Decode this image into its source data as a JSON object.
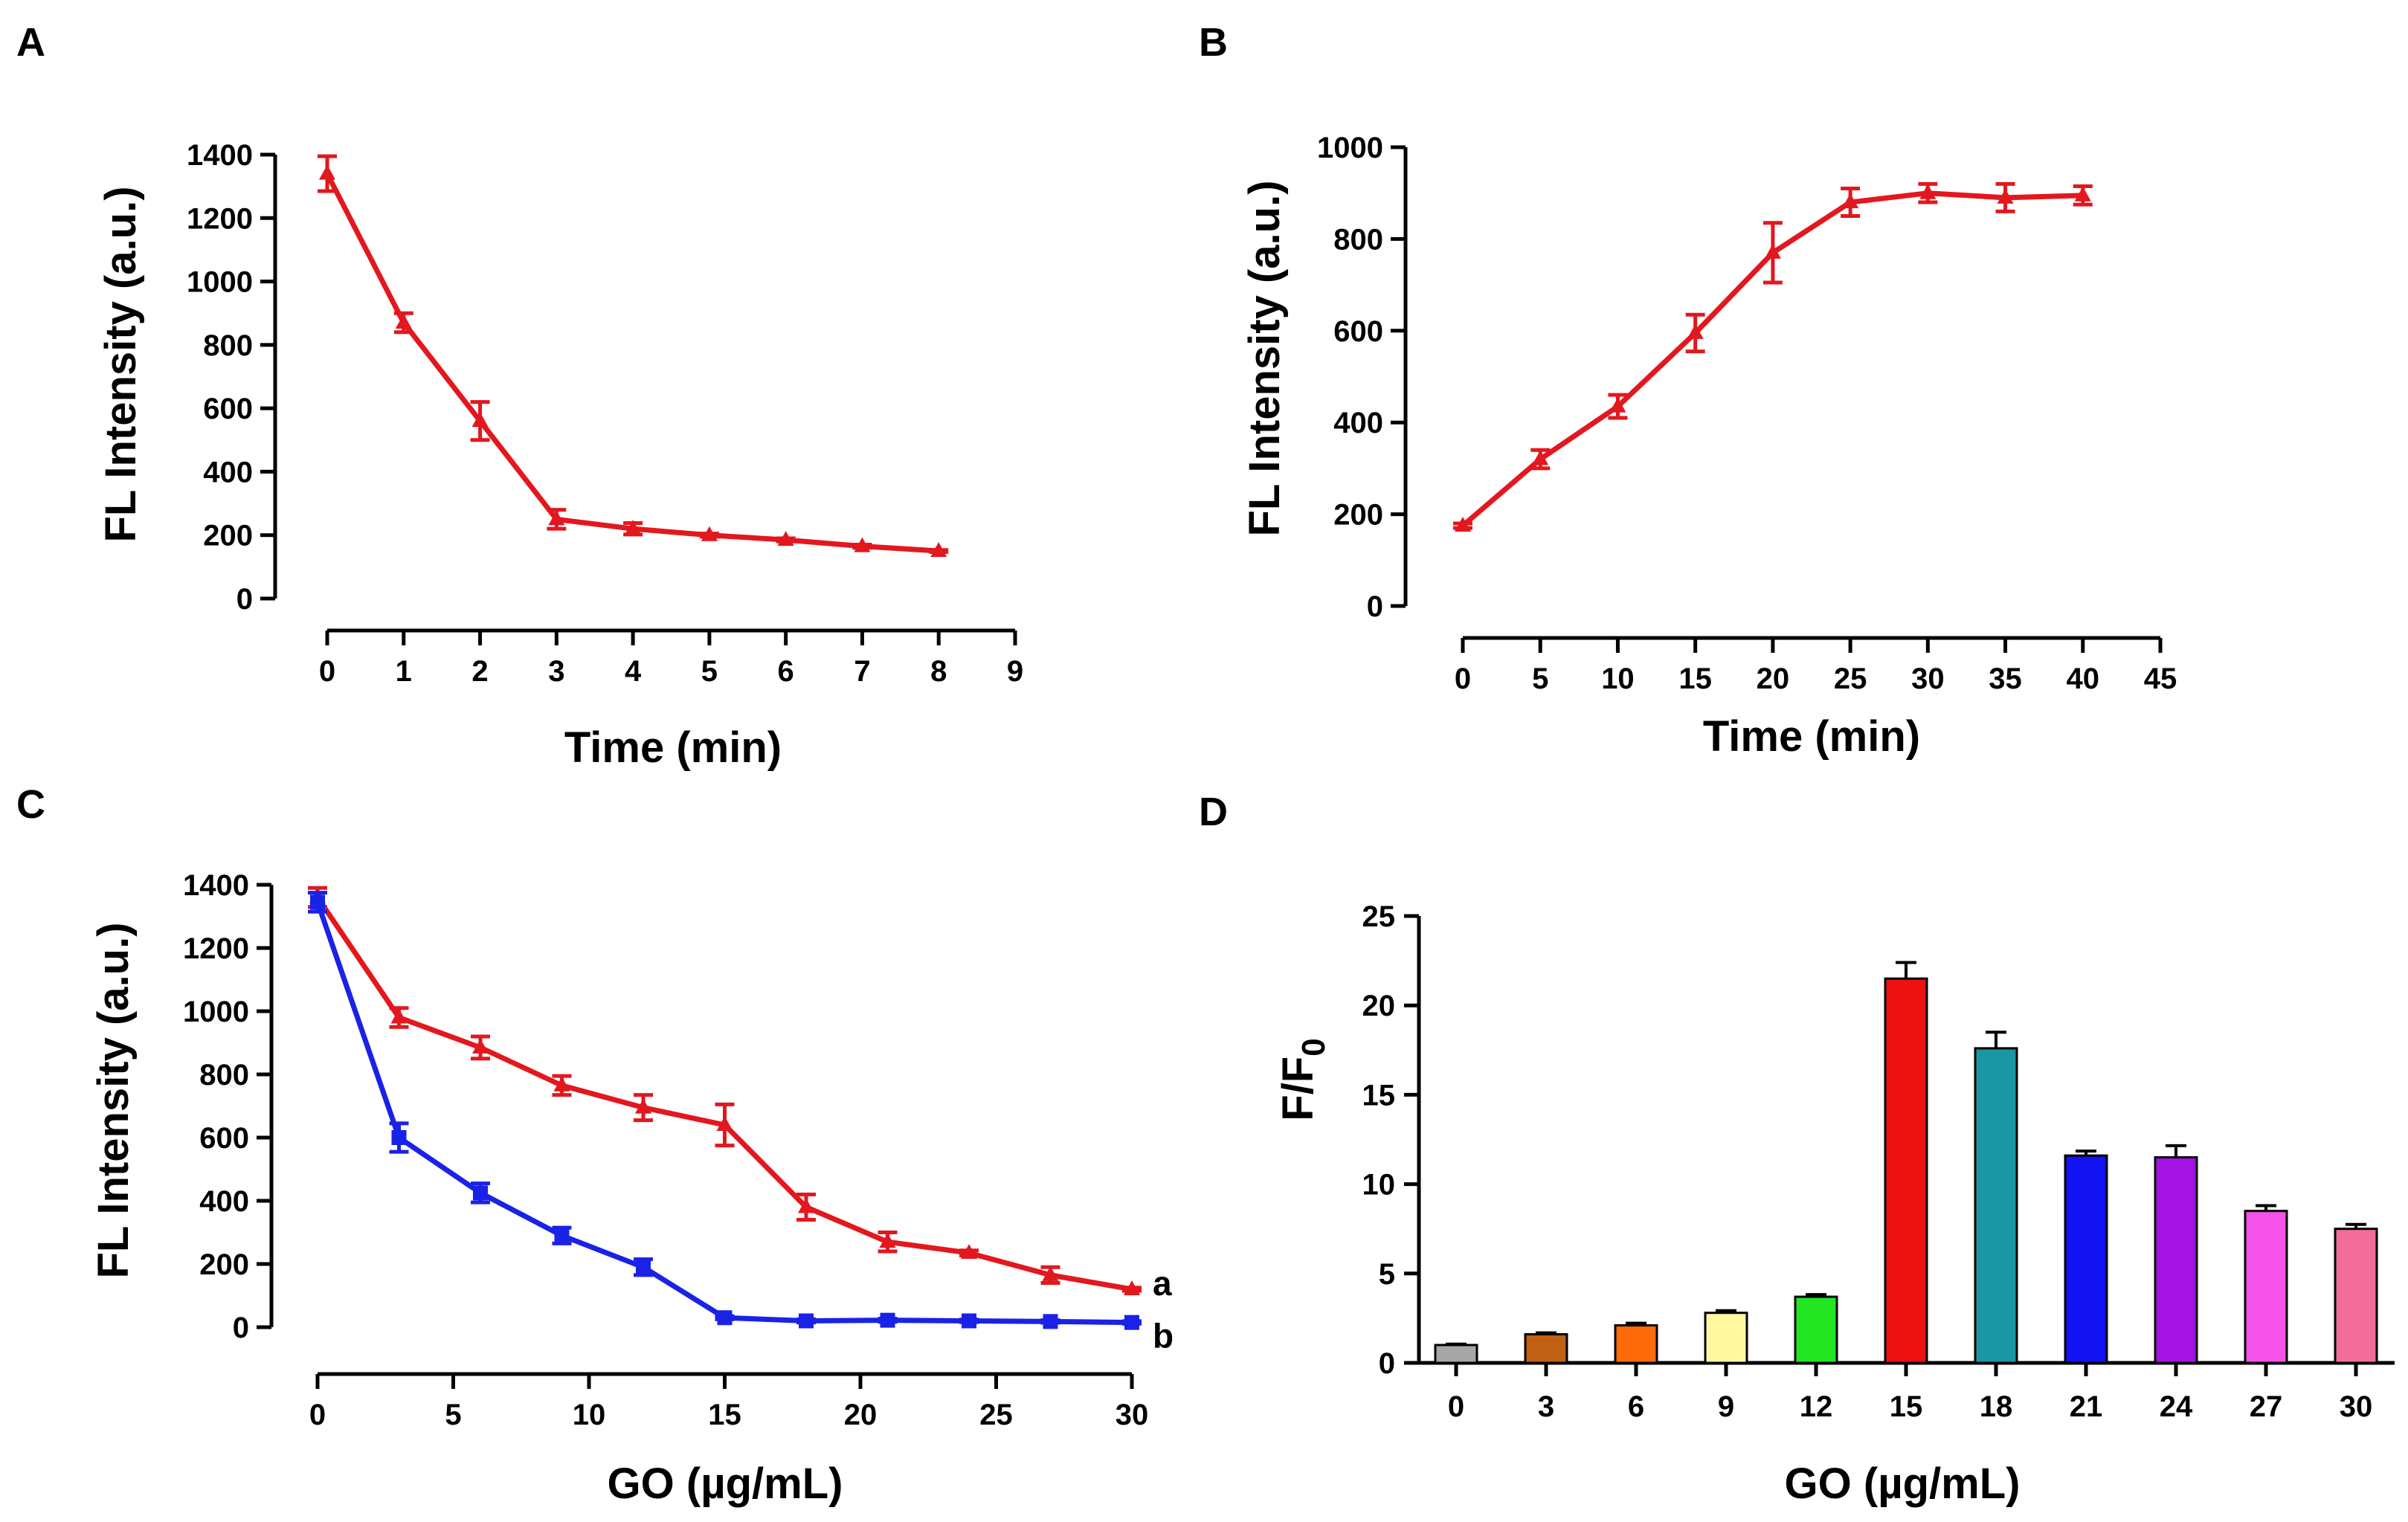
{
  "colors": {
    "red": "#e3171e",
    "blue": "#1a22e6",
    "axis": "#000000"
  },
  "chart_data": [
    {
      "panel": "A",
      "type": "line",
      "xlabel": "Time (min)",
      "ylabel": "FL Intensity (a.u.)",
      "xlim": [
        0,
        9
      ],
      "ylim": [
        0,
        1400
      ],
      "xticks": [
        "0",
        "1",
        "2",
        "3",
        "4",
        "5",
        "6",
        "7",
        "8",
        "9"
      ],
      "yticks": [
        "0",
        "200",
        "400",
        "600",
        "800",
        "1000",
        "1200",
        "1400"
      ],
      "series": [
        {
          "name": "",
          "color": "#e3171e",
          "marker": "triangle",
          "x": [
            0,
            1,
            2,
            3,
            4,
            5,
            6,
            7,
            8
          ],
          "y": [
            1340,
            870,
            560,
            250,
            220,
            200,
            185,
            165,
            150
          ],
          "err": [
            55,
            30,
            60,
            30,
            18,
            5,
            5,
            5,
            3
          ]
        }
      ]
    },
    {
      "panel": "B",
      "type": "line",
      "xlabel": "Time (min)",
      "ylabel": "FL Intensity (a.u.)",
      "xlim": [
        0,
        45
      ],
      "ylim": [
        0,
        1000
      ],
      "xticks": [
        "0",
        "5",
        "10",
        "15",
        "20",
        "25",
        "30",
        "35",
        "40",
        "45"
      ],
      "yticks": [
        "0",
        "200",
        "400",
        "600",
        "800",
        "1000"
      ],
      "series": [
        {
          "name": "",
          "color": "#e3171e",
          "marker": "triangle",
          "x": [
            0,
            5,
            10,
            15,
            20,
            25,
            30,
            35,
            40
          ],
          "y": [
            175,
            320,
            435,
            595,
            770,
            880,
            900,
            890,
            895
          ],
          "err": [
            5,
            20,
            25,
            40,
            65,
            30,
            20,
            30,
            20
          ]
        }
      ]
    },
    {
      "panel": "C",
      "type": "line",
      "xlabel": "GO (µg/mL)",
      "ylabel": "FL Intensity (a.u.)",
      "xlim": [
        0,
        30
      ],
      "ylim": [
        0,
        1400
      ],
      "xticks": [
        "0",
        "5",
        "10",
        "15",
        "20",
        "25",
        "30"
      ],
      "yticks": [
        "0",
        "200",
        "400",
        "600",
        "800",
        "1000",
        "1200",
        "1400"
      ],
      "series": [
        {
          "name": "a",
          "color": "#e3171e",
          "marker": "triangle",
          "x": [
            0,
            3,
            6,
            9,
            12,
            15,
            18,
            21,
            24,
            27,
            30
          ],
          "y": [
            1360,
            980,
            885,
            765,
            695,
            640,
            380,
            270,
            235,
            165,
            120
          ],
          "err": [
            30,
            30,
            35,
            30,
            40,
            65,
            40,
            30,
            8,
            25,
            5
          ]
        },
        {
          "name": "b",
          "color": "#1a22e6",
          "marker": "square",
          "x": [
            0,
            3,
            6,
            9,
            12,
            15,
            18,
            21,
            24,
            27,
            30
          ],
          "y": [
            1345,
            600,
            425,
            290,
            190,
            30,
            20,
            22,
            20,
            18,
            15
          ],
          "err": [
            30,
            45,
            30,
            25,
            25,
            5,
            5,
            5,
            4,
            4,
            4
          ]
        }
      ]
    },
    {
      "panel": "D",
      "type": "bar",
      "xlabel": "GO (µg/mL)",
      "ylabel": "F/F",
      "ylabel_sub": "0",
      "ylim": [
        0,
        25
      ],
      "yticks": [
        "0",
        "5",
        "10",
        "15",
        "20",
        "25"
      ],
      "categories": [
        "0",
        "3",
        "6",
        "9",
        "12",
        "15",
        "18",
        "21",
        "24",
        "27",
        "30"
      ],
      "values": [
        1.0,
        1.6,
        2.1,
        2.8,
        3.7,
        21.5,
        17.6,
        11.6,
        11.5,
        8.5,
        7.5
      ],
      "err": [
        0.05,
        0.08,
        0.12,
        0.12,
        0.12,
        0.9,
        0.9,
        0.25,
        0.65,
        0.3,
        0.25
      ],
      "bar_colors": [
        "#a6a6a6",
        "#c06014",
        "#ff6a0a",
        "#fff8a0",
        "#22e622",
        "#ee1111",
        "#1b97a3",
        "#1212f2",
        "#a313e3",
        "#f452e8",
        "#f26d99"
      ]
    }
  ]
}
